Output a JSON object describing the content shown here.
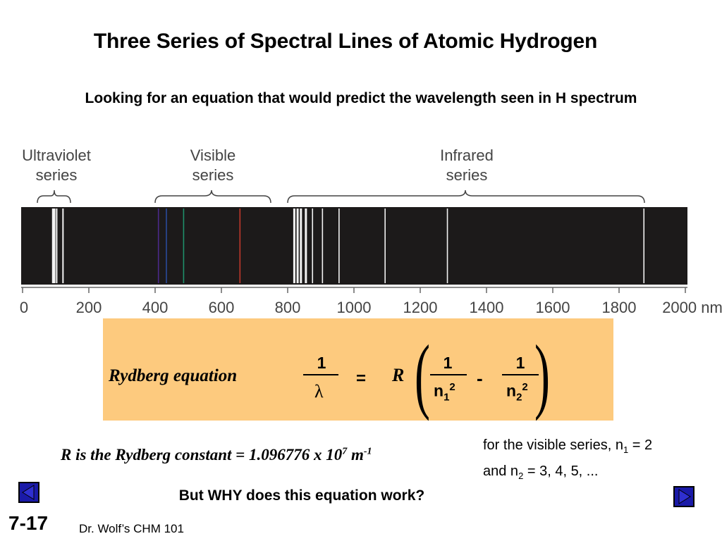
{
  "slide": {
    "title": "Three Series of Spectral Lines of Atomic Hydrogen",
    "subtitle": "Looking for an equation that would predict the wavelength seen in H spectrum",
    "slide_number": "7-17",
    "footer": "Dr. Wolf’s CHM 101",
    "question": "But WHY does this equation work?"
  },
  "spectrum": {
    "series_labels": [
      {
        "line1": "Ultraviolet",
        "line2": "series"
      },
      {
        "line1": "Visible",
        "line2": "series"
      },
      {
        "line1": "Infrared",
        "line2": "series"
      }
    ],
    "axis_ticks": [
      "0",
      "200",
      "400",
      "600",
      "800",
      "1000",
      "1200",
      "1400",
      "1600",
      "1800",
      "2000 nm"
    ],
    "lines_nm": {
      "ultraviolet": [
        91,
        93,
        95,
        97,
        103,
        122
      ],
      "visible": [
        410,
        434,
        486,
        656
      ],
      "infrared": [
        820,
        830,
        840,
        855,
        875,
        905,
        955,
        1094,
        1282,
        1875
      ]
    },
    "visible_line_colors": [
      "#4a2a8a",
      "#2a4a9a",
      "#1f8f6a",
      "#c0392b"
    ]
  },
  "equation": {
    "label": "Rydberg equation",
    "left_numerator": "1",
    "left_denominator": "λ",
    "equals": "=",
    "constant_symbol": "R",
    "term1_numerator": "1",
    "term1_base": "n",
    "term1_sub": "1",
    "term1_sup": "2",
    "minus": "-",
    "term2_numerator": "1",
    "term2_base": "n",
    "term2_sub": "2",
    "term2_sup": "2",
    "box_color": "#fdca7e"
  },
  "constant_note": {
    "text": "R is the Rydberg constant = 1.096776 x 10",
    "exp1": "7",
    "unit": " m",
    "exp2": "-1"
  },
  "visible_note": {
    "line1_pre": "for the visible series, n",
    "line1_sub": "1",
    "line1_post": " = 2",
    "line2_pre": "and n",
    "line2_sub": "2",
    "line2_post": " = 3, 4, 5, ..."
  }
}
